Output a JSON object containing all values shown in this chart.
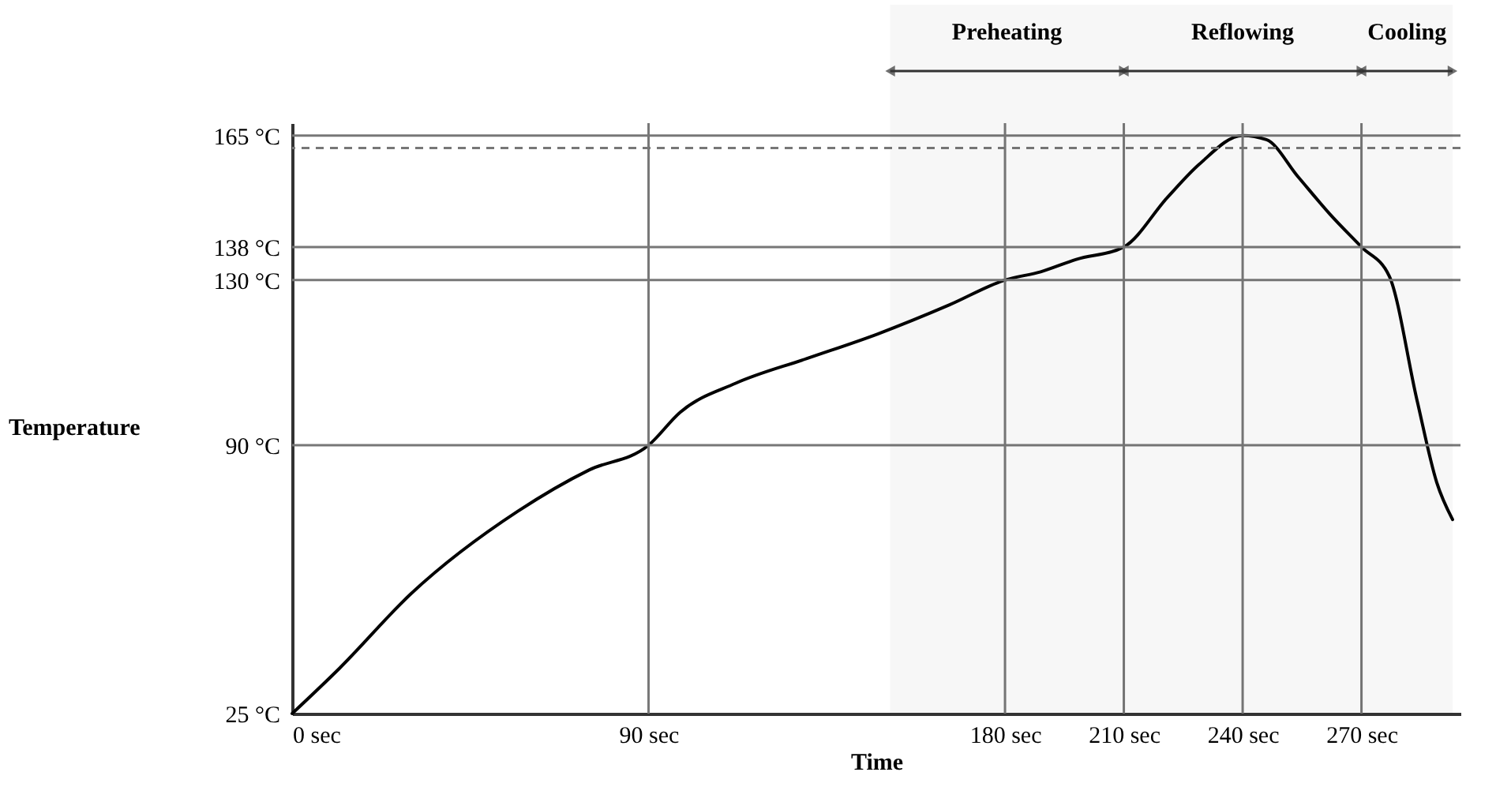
{
  "chart_data": {
    "type": "line",
    "xlabel": "Time",
    "ylabel": "Temperature",
    "x": [
      0,
      12,
      30,
      57,
      75,
      90,
      98,
      112,
      130,
      148,
      166,
      180,
      189,
      198,
      210,
      221,
      229,
      240,
      246,
      254,
      262,
      270,
      277,
      284,
      289,
      293
    ],
    "series": [
      {
        "color": "#000000",
        "values": [
          25,
          36,
          54,
          74,
          84,
          90,
          98,
          105,
          111,
          117,
          124,
          130,
          132,
          135,
          138,
          150,
          158,
          165,
          164,
          155,
          146,
          138,
          131,
          101,
          81,
          72
        ]
      }
    ],
    "xlim": [
      0,
      295
    ],
    "xticks": [
      {
        "value": 0,
        "label": "0 sec"
      },
      {
        "value": 90,
        "label": "90 sec"
      },
      {
        "value": 180,
        "label": "180 sec"
      },
      {
        "value": 210,
        "label": "210 sec"
      },
      {
        "value": 240,
        "label": "240 sec"
      },
      {
        "value": 270,
        "label": "270 sec"
      }
    ],
    "ylim": [
      25,
      168
    ],
    "yticks": [
      {
        "value": 25,
        "label": "25 °C"
      },
      {
        "value": 90,
        "label": "90 °C"
      },
      {
        "value": 130,
        "label": "130 °C"
      },
      {
        "value": 138,
        "label": "138 °C"
      },
      {
        "value": 165,
        "label": "165 °C"
      }
    ],
    "ref_lines": [
      {
        "axis": "y",
        "value": 165
      },
      {
        "axis": "y",
        "value": 162,
        "line_style": "dashed"
      },
      {
        "axis": "y",
        "value": 138
      },
      {
        "axis": "y",
        "value": 130
      },
      {
        "axis": "y",
        "value": 90
      },
      {
        "axis": "x",
        "value": 90
      },
      {
        "axis": "x",
        "value": 180
      },
      {
        "axis": "x",
        "value": 210
      },
      {
        "axis": "x",
        "value": 240
      },
      {
        "axis": "x",
        "value": 270
      }
    ],
    "bands": [
      {
        "axis": "x",
        "from": 151,
        "to": 210,
        "label": "Preheating"
      },
      {
        "axis": "x",
        "from": 210,
        "to": 270,
        "label": "Reflowing"
      },
      {
        "axis": "x",
        "from": 270,
        "to": 293,
        "label": "Cooling"
      }
    ]
  }
}
